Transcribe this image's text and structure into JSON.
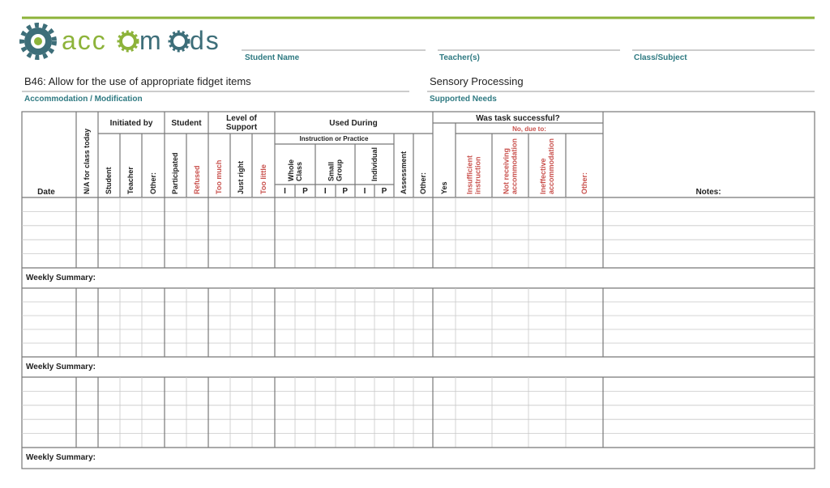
{
  "header": {
    "logo": [
      "acc",
      "m",
      "ds"
    ],
    "fields": [
      "Student Name",
      "Teacher(s)",
      "Class/Subject"
    ]
  },
  "accommodation": {
    "value": "B46: Allow for the use of appropriate fidget items",
    "label": "Accommodation / Modification"
  },
  "needs": {
    "value": "Sensory Processing",
    "label": "Supported Needs"
  },
  "table": {
    "date": "Date",
    "na": "N/A for class today",
    "initiated": {
      "title": "Initiated by",
      "columns": [
        "Student",
        "Teacher",
        "Other:"
      ]
    },
    "student": {
      "title": "Student",
      "columns": [
        "Participated",
        "Refused"
      ]
    },
    "support": {
      "title": [
        "Level of",
        "Support"
      ],
      "columns": [
        "Too much",
        "Just right",
        "Too little"
      ]
    },
    "used": {
      "title": "Used During",
      "sub": "Instruction or Practice",
      "groups": [
        [
          "Whole",
          "Class"
        ],
        [
          "Small",
          "Group"
        ],
        [
          "Individual"
        ]
      ],
      "ip": [
        "I",
        "P"
      ],
      "columns": [
        "Assessment",
        "Other:"
      ]
    },
    "success": {
      "title": "Was task successful?",
      "yes": "Yes",
      "no": "No, due to:",
      "columns": [
        [
          "Insufficient",
          "instruction"
        ],
        [
          "Not receiving",
          "accommodation"
        ],
        [
          "Ineffective",
          "accommodation"
        ],
        [
          "Other:"
        ]
      ]
    },
    "notes": "Notes:",
    "summary": "Weekly Summary:"
  }
}
